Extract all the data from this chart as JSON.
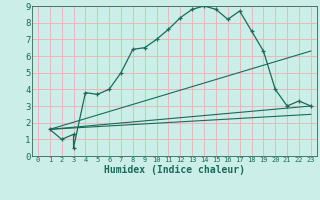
{
  "xlabel": "Humidex (Indice chaleur)",
  "bg_color": "#cceee8",
  "grid_color": "#e8b8b8",
  "line_color": "#1a6b5a",
  "line1_x": [
    1,
    2,
    3,
    3,
    4,
    5,
    6,
    7,
    8,
    9,
    10,
    11,
    12,
    13,
    14,
    15,
    16,
    17,
    18,
    19,
    20,
    21,
    22,
    23
  ],
  "line1_y": [
    1.6,
    1.0,
    1.3,
    0.5,
    3.8,
    3.7,
    4.0,
    5.0,
    6.4,
    6.5,
    7.0,
    7.6,
    8.3,
    8.8,
    9.0,
    8.8,
    8.2,
    8.7,
    7.5,
    6.3,
    4.0,
    3.0,
    3.3,
    3.0
  ],
  "line2_x": [
    1,
    23
  ],
  "line2_y": [
    1.6,
    3.0
  ],
  "line3_x": [
    1,
    23
  ],
  "line3_y": [
    1.6,
    2.5
  ],
  "line4_x": [
    1,
    23
  ],
  "line4_y": [
    1.6,
    6.3
  ],
  "xlim": [
    -0.5,
    23.5
  ],
  "ylim": [
    0,
    9
  ],
  "xticks": [
    0,
    1,
    2,
    3,
    4,
    5,
    6,
    7,
    8,
    9,
    10,
    11,
    12,
    13,
    14,
    15,
    16,
    17,
    18,
    19,
    20,
    21,
    22,
    23
  ],
  "yticks": [
    0,
    1,
    2,
    3,
    4,
    5,
    6,
    7,
    8,
    9
  ]
}
